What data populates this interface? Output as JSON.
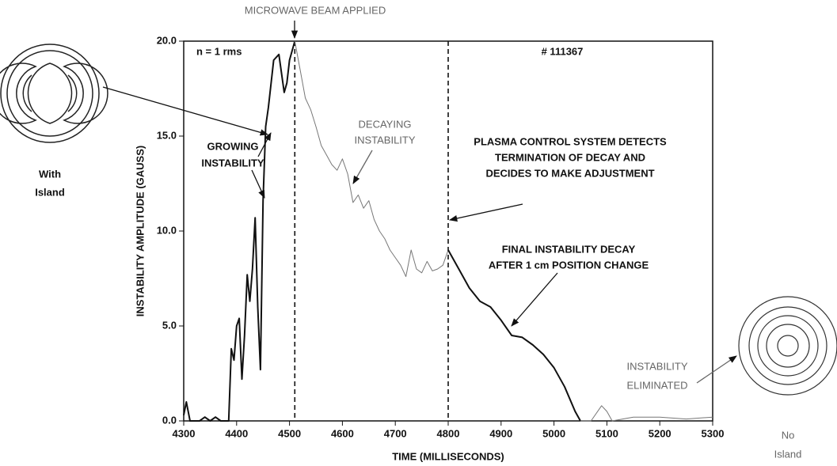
{
  "chart_data": {
    "type": "line",
    "xlabel": "TIME (MILLISECONDS)",
    "ylabel": "INSTABILITY AMPLITUDE (GAUSS)",
    "xlim": [
      4300,
      5300
    ],
    "ylim": [
      0,
      20
    ],
    "xticks": [
      4300,
      4400,
      4500,
      4600,
      4700,
      4800,
      4900,
      5000,
      5100,
      5200,
      5300
    ],
    "yticks": [
      {
        "value": 0,
        "label": "0.0"
      },
      {
        "value": 5,
        "label": "5.0"
      },
      {
        "value": 10,
        "label": "10.0"
      },
      {
        "value": 15,
        "label": "15.0"
      },
      {
        "value": 20,
        "label": "20.0"
      }
    ],
    "vlines": [
      4510,
      4800
    ],
    "series": [
      {
        "color": "#111111",
        "width": 2,
        "x": [
          4300,
          4305,
          4312,
          4330,
          4340,
          4350,
          4360,
          4370,
          4380,
          4385,
          4390,
          4395,
          4400,
          4405,
          4410,
          4415,
          4420,
          4425,
          4430,
          4435,
          4440,
          4445,
          4450,
          4455,
          4460,
          4470,
          4480,
          4490,
          4495,
          4500,
          4510
        ],
        "values": [
          0.3,
          1.0,
          0,
          0,
          0.2,
          0,
          0.2,
          0,
          0,
          0,
          3.8,
          3.2,
          5.0,
          5.4,
          2.2,
          4.5,
          7.7,
          6.3,
          8.0,
          10.7,
          6.0,
          2.7,
          11.6,
          15.5,
          16.5,
          19.0,
          19.3,
          17.3,
          17.8,
          19.0,
          20.0
        ]
      },
      {
        "color": "#777777",
        "width": 1,
        "x": [
          4510,
          4520,
          4530,
          4540,
          4550,
          4560,
          4570,
          4580,
          4590,
          4600,
          4610,
          4620,
          4630,
          4640,
          4650,
          4660,
          4670,
          4680,
          4690,
          4700,
          4710,
          4720,
          4730,
          4740,
          4750,
          4760,
          4770,
          4780,
          4790,
          4800
        ],
        "values": [
          20.0,
          18.5,
          17.0,
          16.4,
          15.5,
          14.5,
          14.0,
          13.5,
          13.2,
          13.8,
          13.0,
          11.5,
          11.9,
          11.2,
          11.6,
          10.6,
          10.0,
          9.6,
          9.0,
          8.6,
          8.2,
          7.6,
          9.0,
          8.0,
          7.8,
          8.4,
          7.9,
          8.0,
          8.2,
          9.0
        ]
      },
      {
        "color": "#111111",
        "width": 2,
        "x": [
          4800,
          4820,
          4840,
          4860,
          4880,
          4900,
          4920,
          4940,
          4960,
          4980,
          5000,
          5020,
          5040,
          5050
        ],
        "values": [
          9.0,
          8.0,
          7.0,
          6.3,
          6.0,
          5.3,
          4.5,
          4.4,
          4.0,
          3.5,
          2.8,
          1.8,
          0.5,
          0
        ]
      },
      {
        "color": "#777777",
        "width": 1,
        "x": [
          5050,
          5070,
          5090,
          5100,
          5110,
          5150,
          5200,
          5250,
          5300
        ],
        "values": [
          0,
          0,
          0.8,
          0.5,
          0,
          0.2,
          0.2,
          0.1,
          0.2
        ]
      }
    ],
    "annotations": [
      [
        "n = 1 rms"
      ],
      [
        "# 111367"
      ],
      [
        "MICROWAVE BEAM APPLIED"
      ],
      [
        "GROWING",
        "INSTABILITY"
      ],
      [
        "DECAYING",
        "INSTABILITY"
      ],
      [
        "PLASMA CONTROL SYSTEM DETECTS",
        "TERMINATION OF DECAY AND",
        "DECIDES TO MAKE ADJUSTMENT"
      ],
      [
        "FINAL INSTABILITY DECAY",
        "AFTER 1 cm POSITION CHANGE"
      ],
      [
        "INSTABILITY",
        "ELIMINATED"
      ],
      [
        "With",
        "Island"
      ],
      [
        "No",
        "Island"
      ]
    ]
  }
}
